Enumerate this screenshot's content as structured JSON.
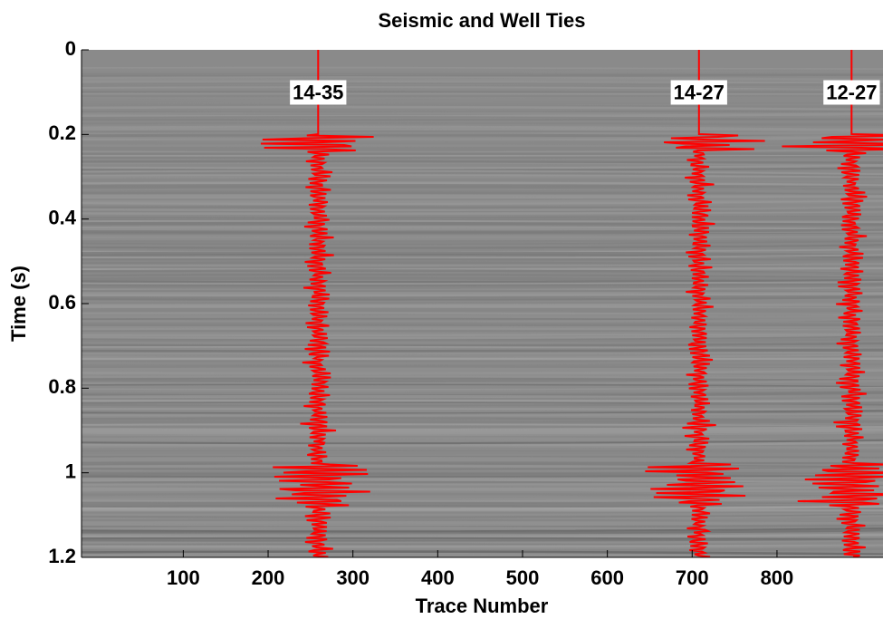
{
  "chart_data": {
    "type": "seismic",
    "title": "Seismic and Well Ties",
    "xlabel": "Trace Number",
    "ylabel": "Time (s)",
    "xlim": [
      -20,
      925
    ],
    "ylim": [
      0,
      1.2
    ],
    "xticks": [
      100,
      200,
      300,
      400,
      500,
      600,
      700,
      800
    ],
    "yticks": [
      0,
      0.2,
      0.4,
      0.6,
      0.8,
      1,
      1.2
    ],
    "trace_color": "#ff0000",
    "wells": [
      {
        "name": "14-35",
        "x": 259
      },
      {
        "name": "14-27",
        "x": 708
      },
      {
        "name": "12-27",
        "x": 888
      }
    ]
  }
}
